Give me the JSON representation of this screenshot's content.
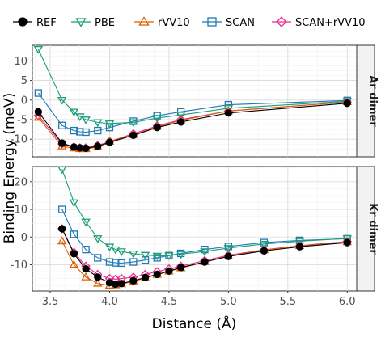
{
  "chart_data": {
    "type": "line",
    "xlabel": "Distance (Å)",
    "ylabel": "Binding Energy (meV)",
    "x_ticks": [
      3.5,
      4.0,
      4.5,
      5.0,
      5.5,
      6.0
    ],
    "xlim": [
      3.35,
      6.08
    ],
    "legend_position": "top",
    "grid": true,
    "legend": [
      {
        "name": "REF",
        "color": "#000000",
        "shape": "circle"
      },
      {
        "name": "PBE",
        "color": "#1b9e77",
        "shape": "triangle-down"
      },
      {
        "name": "rVV10",
        "color": "#d95f02",
        "shape": "triangle-up"
      },
      {
        "name": "SCAN",
        "color": "#1f78b4",
        "shape": "square"
      },
      {
        "name": "SCAN+rVV10",
        "color": "#e7298a",
        "shape": "diamond"
      }
    ],
    "panels": [
      {
        "label": "Ar dimer",
        "ylim": [
          -14.5,
          14
        ],
        "y_ticks": [
          -10,
          -5,
          0,
          5,
          10
        ],
        "series": [
          {
            "name": "REF",
            "points": [
              [
                3.4,
                -3.0
              ],
              [
                3.6,
                -11.0
              ],
              [
                3.7,
                -12.0
              ],
              [
                3.75,
                -12.2
              ],
              [
                3.8,
                -12.3
              ],
              [
                3.9,
                -11.8
              ],
              [
                4.0,
                -10.8
              ],
              [
                4.2,
                -9.0
              ],
              [
                4.4,
                -7.0
              ],
              [
                4.6,
                -5.6
              ],
              [
                5.0,
                -3.3
              ],
              [
                6.0,
                -0.8
              ]
            ]
          },
          {
            "name": "PBE",
            "points": [
              [
                3.4,
                13.0
              ],
              [
                3.6,
                0.0
              ],
              [
                3.7,
                -3.0
              ],
              [
                3.75,
                -4.2
              ],
              [
                3.8,
                -5.0
              ],
              [
                3.9,
                -5.7
              ],
              [
                4.0,
                -6.0
              ],
              [
                4.2,
                -5.7
              ],
              [
                4.4,
                -4.6
              ],
              [
                4.6,
                -3.8
              ],
              [
                5.0,
                -2.1
              ],
              [
                6.0,
                -0.3
              ]
            ]
          },
          {
            "name": "rVV10",
            "points": [
              [
                3.4,
                -4.5
              ],
              [
                3.6,
                -11.8
              ],
              [
                3.7,
                -12.3
              ],
              [
                3.75,
                -12.5
              ],
              [
                3.8,
                -12.5
              ],
              [
                3.9,
                -12.0
              ],
              [
                4.0,
                -10.6
              ],
              [
                4.2,
                -8.9
              ],
              [
                4.4,
                -6.8
              ],
              [
                4.6,
                -5.2
              ],
              [
                5.0,
                -2.8
              ],
              [
                6.0,
                -0.5
              ]
            ]
          },
          {
            "name": "SCAN",
            "points": [
              [
                3.4,
                1.8
              ],
              [
                3.6,
                -6.5
              ],
              [
                3.7,
                -7.8
              ],
              [
                3.75,
                -8.1
              ],
              [
                3.8,
                -8.2
              ],
              [
                3.9,
                -7.8
              ],
              [
                4.0,
                -7.0
              ],
              [
                4.2,
                -5.4
              ],
              [
                4.4,
                -4.0
              ],
              [
                4.6,
                -3.0
              ],
              [
                5.0,
                -1.2
              ],
              [
                6.0,
                -0.1
              ]
            ]
          },
          {
            "name": "SCAN+rVV10",
            "points": [
              [
                3.4,
                -4.0
              ],
              [
                3.6,
                -11.2
              ],
              [
                3.7,
                -12.0
              ],
              [
                3.75,
                -12.2
              ],
              [
                3.8,
                -12.2
              ],
              [
                3.9,
                -11.6
              ],
              [
                4.0,
                -10.6
              ],
              [
                4.2,
                -8.6
              ],
              [
                4.4,
                -6.6
              ],
              [
                4.6,
                -5.0
              ],
              [
                5.0,
                -2.8
              ],
              [
                6.0,
                -0.5
              ]
            ]
          }
        ]
      },
      {
        "label": "Kr dimer",
        "ylim": [
          -19.5,
          25.5
        ],
        "y_ticks": [
          -10,
          0,
          10,
          20
        ],
        "series": [
          {
            "name": "REF",
            "points": [
              [
                3.6,
                3.0
              ],
              [
                3.7,
                -6.0
              ],
              [
                3.8,
                -11.5
              ],
              [
                3.9,
                -14.5
              ],
              [
                4.0,
                -16.5
              ],
              [
                4.05,
                -17.0
              ],
              [
                4.1,
                -16.8
              ],
              [
                4.2,
                -15.8
              ],
              [
                4.3,
                -14.6
              ],
              [
                4.4,
                -13.5
              ],
              [
                4.5,
                -12.3
              ],
              [
                4.6,
                -11.0
              ],
              [
                4.8,
                -9.0
              ],
              [
                5.0,
                -7.0
              ],
              [
                5.3,
                -5.0
              ],
              [
                5.6,
                -3.5
              ],
              [
                6.0,
                -2.0
              ]
            ]
          },
          {
            "name": "PBE",
            "points": [
              [
                3.6,
                24.5
              ],
              [
                3.7,
                12.5
              ],
              [
                3.8,
                5.5
              ],
              [
                3.9,
                -0.5
              ],
              [
                4.0,
                -3.5
              ],
              [
                4.05,
                -4.5
              ],
              [
                4.1,
                -5.2
              ],
              [
                4.2,
                -6.0
              ],
              [
                4.3,
                -6.5
              ],
              [
                4.4,
                -6.8
              ],
              [
                4.5,
                -6.7
              ],
              [
                4.6,
                -6.2
              ],
              [
                4.8,
                -5.2
              ],
              [
                5.0,
                -4.0
              ],
              [
                5.3,
                -2.5
              ],
              [
                5.6,
                -1.5
              ],
              [
                6.0,
                -0.5
              ]
            ]
          },
          {
            "name": "rVV10",
            "points": [
              [
                3.6,
                -1.5
              ],
              [
                3.7,
                -10.0
              ],
              [
                3.8,
                -14.5
              ],
              [
                3.9,
                -16.8
              ],
              [
                4.0,
                -17.5
              ],
              [
                4.05,
                -17.4
              ],
              [
                4.1,
                -17.0
              ],
              [
                4.2,
                -16.0
              ],
              [
                4.3,
                -14.8
              ],
              [
                4.4,
                -13.6
              ],
              [
                4.5,
                -12.4
              ],
              [
                4.6,
                -11.2
              ],
              [
                4.8,
                -9.0
              ],
              [
                5.0,
                -6.9
              ],
              [
                5.3,
                -4.7
              ],
              [
                5.6,
                -3.2
              ],
              [
                6.0,
                -1.8
              ]
            ]
          },
          {
            "name": "SCAN",
            "points": [
              [
                3.6,
                10.0
              ],
              [
                3.7,
                1.0
              ],
              [
                3.8,
                -4.5
              ],
              [
                3.9,
                -7.5
              ],
              [
                4.0,
                -9.0
              ],
              [
                4.05,
                -9.3
              ],
              [
                4.1,
                -9.4
              ],
              [
                4.2,
                -9.0
              ],
              [
                4.3,
                -8.3
              ],
              [
                4.4,
                -7.5
              ],
              [
                4.5,
                -6.7
              ],
              [
                4.6,
                -5.9
              ],
              [
                4.8,
                -4.5
              ],
              [
                5.0,
                -3.4
              ],
              [
                5.3,
                -2.0
              ],
              [
                5.6,
                -1.2
              ],
              [
                6.0,
                -0.6
              ]
            ]
          },
          {
            "name": "SCAN+rVV10",
            "points": [
              [
                3.6,
                3.0
              ],
              [
                3.7,
                -5.5
              ],
              [
                3.8,
                -10.5
              ],
              [
                3.9,
                -13.5
              ],
              [
                4.0,
                -15.0
              ],
              [
                4.05,
                -15.2
              ],
              [
                4.1,
                -15.0
              ],
              [
                4.2,
                -14.5
              ],
              [
                4.3,
                -13.5
              ],
              [
                4.4,
                -12.5
              ],
              [
                4.5,
                -11.5
              ],
              [
                4.6,
                -10.5
              ],
              [
                4.8,
                -8.5
              ],
              [
                5.0,
                -6.6
              ],
              [
                5.3,
                -4.6
              ],
              [
                5.6,
                -3.1
              ],
              [
                6.0,
                -1.6
              ]
            ]
          }
        ]
      }
    ]
  }
}
